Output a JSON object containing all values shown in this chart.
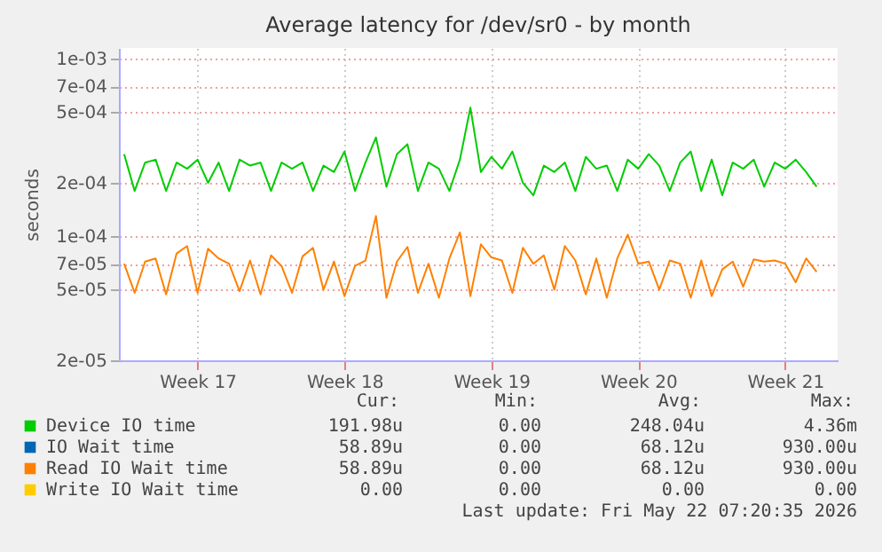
{
  "chart_data": {
    "type": "line",
    "title": "Average latency for /dev/sr0 - by month",
    "ylabel": "seconds",
    "log": true,
    "grid": true,
    "legend": "bottom",
    "line_style": "solid",
    "marker": "none",
    "ylim": [
      2e-05,
      0.00115
    ],
    "yticks": [
      {
        "value": 2e-05,
        "label": "2e-05"
      },
      {
        "value": 5e-05,
        "label": "5e-05"
      },
      {
        "value": 7e-05,
        "label": "7e-05"
      },
      {
        "value": 0.0001,
        "label": "1e-04"
      },
      {
        "value": 0.0002,
        "label": "2e-04"
      },
      {
        "value": 0.0005,
        "label": "5e-04"
      },
      {
        "value": 0.0007,
        "label": "7e-04"
      },
      {
        "value": 0.001,
        "label": "1e-03"
      }
    ],
    "categories": [
      null,
      null,
      null,
      null,
      null,
      null,
      null,
      "Week 17",
      null,
      null,
      null,
      null,
      null,
      null,
      null,
      null,
      null,
      null,
      null,
      null,
      null,
      "Week 18",
      null,
      null,
      null,
      null,
      null,
      null,
      null,
      null,
      null,
      null,
      null,
      null,
      null,
      "Week 19",
      null,
      null,
      null,
      null,
      null,
      null,
      null,
      null,
      null,
      null,
      null,
      null,
      null,
      "Week 20",
      null,
      null,
      null,
      null,
      null,
      null,
      null,
      null,
      null,
      null,
      null,
      null,
      null,
      "Week 21",
      null,
      null,
      null
    ],
    "series": [
      {
        "name": "Device IO time",
        "color": "#00cc00",
        "values": [
          0.00029,
          0.00018,
          0.00026,
          0.00027,
          0.00018,
          0.00026,
          0.00024,
          0.00027,
          0.0002,
          0.00026,
          0.00018,
          0.00027,
          0.00025,
          0.00026,
          0.00018,
          0.00026,
          0.00024,
          0.00026,
          0.00018,
          0.00025,
          0.00023,
          0.0003,
          0.00018,
          0.00026,
          0.00036,
          0.00019,
          0.00029,
          0.00033,
          0.00018,
          0.00026,
          0.00024,
          0.00018,
          0.00027,
          0.00053,
          0.00023,
          0.00028,
          0.00024,
          0.0003,
          0.0002,
          0.00017,
          0.00025,
          0.00023,
          0.00026,
          0.00018,
          0.00028,
          0.00024,
          0.00025,
          0.00018,
          0.00027,
          0.00024,
          0.00029,
          0.00025,
          0.00018,
          0.00026,
          0.0003,
          0.00018,
          0.00027,
          0.00017,
          0.00026,
          0.00024,
          0.00027,
          0.00019,
          0.00026,
          0.00024,
          0.00027,
          0.00023,
          0.00019
        ]
      },
      {
        "name": "IO Wait time",
        "color": "#0066b3",
        "values": [
          null,
          null,
          null,
          null,
          null,
          null,
          null,
          null,
          null,
          null,
          null,
          null,
          null,
          null,
          null,
          null,
          null,
          null,
          null,
          null,
          null,
          null,
          null,
          null,
          null,
          null,
          null,
          null,
          null,
          null,
          null,
          null,
          null,
          null,
          null,
          null,
          null,
          null,
          null,
          null,
          null,
          null,
          null,
          null,
          null,
          null,
          null,
          null,
          null,
          null,
          null,
          null,
          null,
          null,
          null,
          null,
          null,
          null,
          null,
          null,
          null,
          null,
          null,
          null,
          null,
          null,
          null
        ]
      },
      {
        "name": "Read IO Wait time",
        "color": "#ff8000",
        "values": [
          7e-05,
          4.8e-05,
          7.2e-05,
          7.5e-05,
          4.7e-05,
          8e-05,
          8.8e-05,
          4.8e-05,
          8.5e-05,
          7.5e-05,
          7e-05,
          4.9e-05,
          7.3e-05,
          4.7e-05,
          7.8e-05,
          6.8e-05,
          4.8e-05,
          7.7e-05,
          8.6e-05,
          5e-05,
          7.2e-05,
          4.6e-05,
          6.8e-05,
          7.3e-05,
          0.00013,
          4.5e-05,
          7.2e-05,
          8.7e-05,
          4.8e-05,
          7e-05,
          4.5e-05,
          7.5e-05,
          0.000105,
          4.6e-05,
          9e-05,
          7.6e-05,
          7.3e-05,
          4.8e-05,
          8.6e-05,
          7e-05,
          7.8e-05,
          5e-05,
          8.8e-05,
          7.3e-05,
          4.7e-05,
          7.5e-05,
          4.5e-05,
          7.5e-05,
          0.000102,
          7e-05,
          7.2e-05,
          5e-05,
          7.3e-05,
          7e-05,
          4.5e-05,
          7.3e-05,
          4.6e-05,
          6.5e-05,
          7.2e-05,
          5.2e-05,
          7.4e-05,
          7.2e-05,
          7.3e-05,
          7e-05,
          5.5e-05,
          7.5e-05,
          6.3e-05
        ]
      },
      {
        "name": "Write IO Wait time",
        "color": "#ffcc00",
        "values": [
          null,
          null,
          null,
          null,
          null,
          null,
          null,
          null,
          null,
          null,
          null,
          null,
          null,
          null,
          null,
          null,
          null,
          null,
          null,
          null,
          null,
          null,
          null,
          null,
          null,
          null,
          null,
          null,
          null,
          null,
          null,
          null,
          null,
          null,
          null,
          null,
          null,
          null,
          null,
          null,
          null,
          null,
          null,
          null,
          null,
          null,
          null,
          null,
          null,
          null,
          null,
          null,
          null,
          null,
          null,
          null,
          null,
          null,
          null,
          null,
          null,
          null,
          null,
          null,
          null,
          null,
          null
        ]
      }
    ],
    "annotations": [
      "Cur:",
      "Min:",
      "Avg:",
      "Max:",
      "191.98u",
      "0.00",
      "248.04u",
      "4.36m",
      "58.89u",
      "0.00",
      "68.12u",
      "930.00u",
      "58.89u",
      "0.00",
      "68.12u",
      "930.00u",
      "0.00",
      "0.00",
      "0.00",
      "0.00",
      "Last update: Fri May 22 07:20:35 2026"
    ]
  }
}
